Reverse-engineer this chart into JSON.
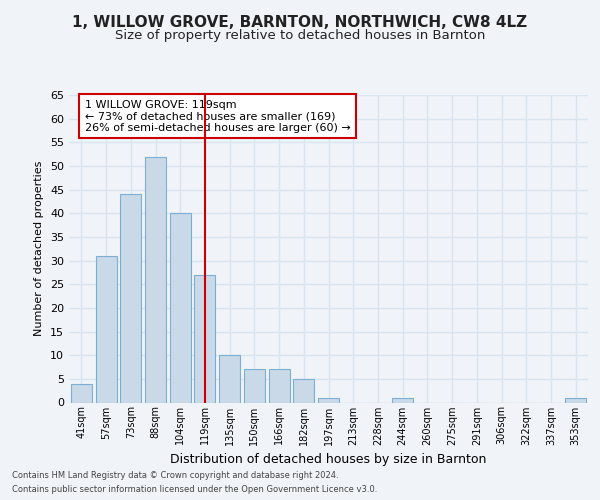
{
  "title1": "1, WILLOW GROVE, BARNTON, NORTHWICH, CW8 4LZ",
  "title2": "Size of property relative to detached houses in Barnton",
  "xlabel": "Distribution of detached houses by size in Barnton",
  "ylabel": "Number of detached properties",
  "categories": [
    "41sqm",
    "57sqm",
    "73sqm",
    "88sqm",
    "104sqm",
    "119sqm",
    "135sqm",
    "150sqm",
    "166sqm",
    "182sqm",
    "197sqm",
    "213sqm",
    "228sqm",
    "244sqm",
    "260sqm",
    "275sqm",
    "291sqm",
    "306sqm",
    "322sqm",
    "337sqm",
    "353sqm"
  ],
  "values": [
    4,
    31,
    44,
    52,
    40,
    27,
    10,
    7,
    7,
    5,
    1,
    0,
    0,
    1,
    0,
    0,
    0,
    0,
    0,
    0,
    1
  ],
  "bar_color": "#c9d9e8",
  "bar_edge_color": "#7bafd4",
  "highlight_index": 5,
  "highlight_line_color": "#cc0000",
  "ylim": [
    0,
    65
  ],
  "yticks": [
    0,
    5,
    10,
    15,
    20,
    25,
    30,
    35,
    40,
    45,
    50,
    55,
    60,
    65
  ],
  "annotation_title": "1 WILLOW GROVE: 119sqm",
  "annotation_line1": "← 73% of detached houses are smaller (169)",
  "annotation_line2": "26% of semi-detached houses are larger (60) →",
  "annotation_box_color": "#ffffff",
  "annotation_box_edge_color": "#cc0000",
  "footer1": "Contains HM Land Registry data © Crown copyright and database right 2024.",
  "footer2": "Contains public sector information licensed under the Open Government Licence v3.0.",
  "bg_color": "#f0f4f8",
  "plot_bg_color": "#f0f4f8",
  "grid_color": "#d8e4f0",
  "title1_fontsize": 11,
  "title2_fontsize": 9.5
}
